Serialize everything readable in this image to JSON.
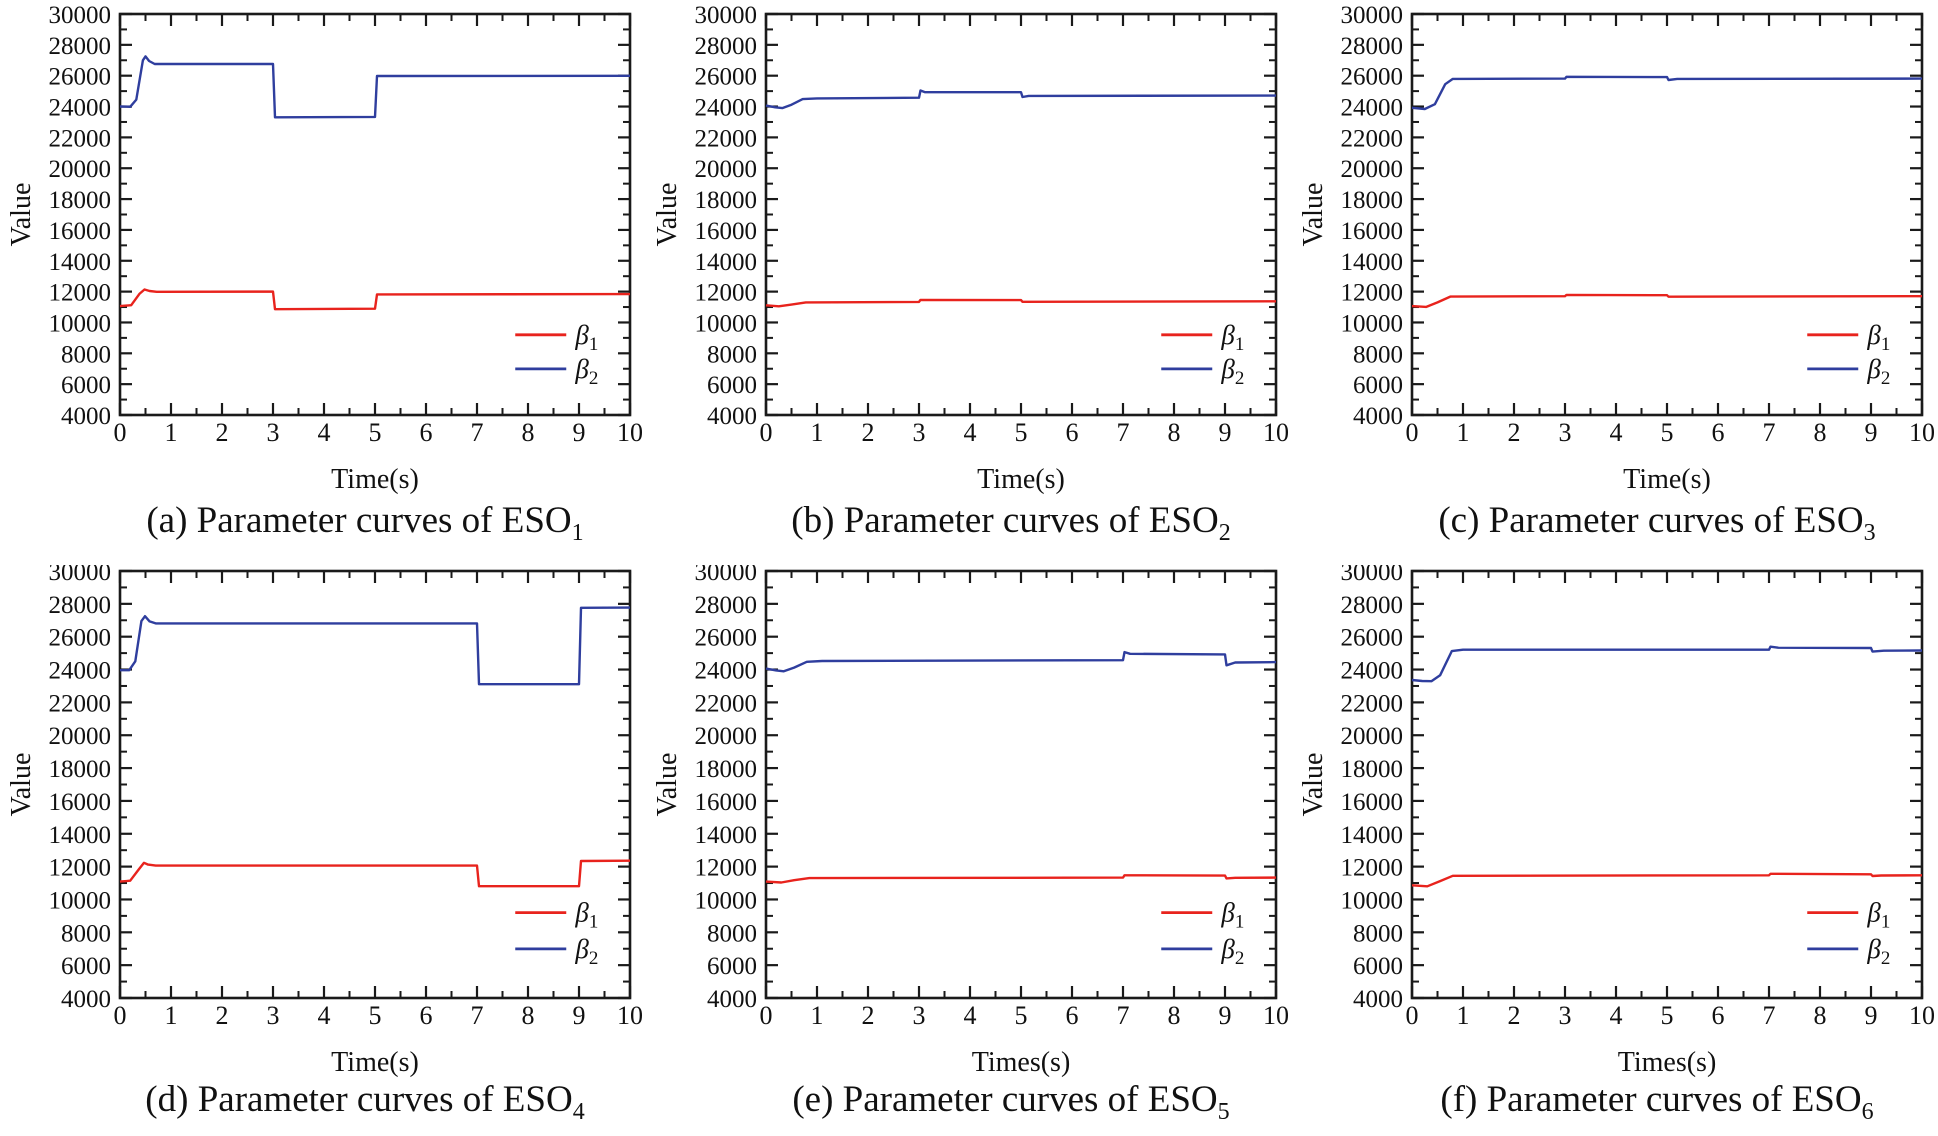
{
  "figure": {
    "ylabel": "Value",
    "legend": [
      {
        "symbol": "β",
        "sub": "1",
        "color": "#e8231d"
      },
      {
        "symbol": "β",
        "sub": "2",
        "color": "#2f3e9e"
      }
    ],
    "colors": {
      "beta1": "#e8231d",
      "beta2": "#2f3e9e",
      "axis": "#1a1a1a"
    }
  },
  "chart_data": [
    {
      "id": "a",
      "type": "line",
      "title": "(a) Parameter curves of ESO",
      "caption_prefix": "(a)",
      "caption_body": " Parameter curves of ESO",
      "caption_sub": "1",
      "xlabel": "Time(s)",
      "ylabel": "Value",
      "xlim": [
        0,
        10
      ],
      "ylim": [
        4000,
        30000
      ],
      "xticks": [
        0,
        1,
        2,
        3,
        4,
        5,
        6,
        7,
        8,
        9,
        10
      ],
      "yticks": [
        4000,
        6000,
        8000,
        10000,
        12000,
        14000,
        16000,
        18000,
        20000,
        22000,
        24000,
        26000,
        28000,
        30000
      ],
      "legend_entries": [
        "β_1",
        "β_2"
      ],
      "series": [
        {
          "name": "beta1",
          "color": "#e8231d",
          "points": [
            [
              0,
              11060
            ],
            [
              0.22,
              11120
            ],
            [
              0.38,
              11850
            ],
            [
              0.48,
              12140
            ],
            [
              0.58,
              12040
            ],
            [
              0.72,
              11990
            ],
            [
              3,
              12000
            ],
            [
              3.04,
              10860
            ],
            [
              5,
              10890
            ],
            [
              5.04,
              11820
            ],
            [
              10,
              11840
            ]
          ]
        },
        {
          "name": "beta2",
          "color": "#2f3e9e",
          "points": [
            [
              0,
              24000
            ],
            [
              0.2,
              23980
            ],
            [
              0.32,
              24450
            ],
            [
              0.45,
              27000
            ],
            [
              0.5,
              27250
            ],
            [
              0.57,
              26950
            ],
            [
              0.68,
              26760
            ],
            [
              3,
              26760
            ],
            [
              3.04,
              23300
            ],
            [
              5,
              23330
            ],
            [
              5.04,
              25980
            ],
            [
              10,
              25990
            ]
          ]
        }
      ]
    },
    {
      "id": "b",
      "type": "line",
      "title": "(b) Parameter curves of ESO",
      "caption_prefix": "(b)",
      "caption_body": " Parameter curves of ESO",
      "caption_sub": "2",
      "xlabel": "Time(s)",
      "ylabel": "Value",
      "xlim": [
        0,
        10
      ],
      "ylim": [
        4000,
        30000
      ],
      "xticks": [
        0,
        1,
        2,
        3,
        4,
        5,
        6,
        7,
        8,
        9,
        10
      ],
      "yticks": [
        4000,
        6000,
        8000,
        10000,
        12000,
        14000,
        16000,
        18000,
        20000,
        22000,
        24000,
        26000,
        28000,
        30000
      ],
      "legend_entries": [
        "β_1",
        "β_2"
      ],
      "series": [
        {
          "name": "beta1",
          "color": "#e8231d",
          "points": [
            [
              0,
              11110
            ],
            [
              0.25,
              11050
            ],
            [
              0.5,
              11160
            ],
            [
              0.78,
              11300
            ],
            [
              3,
              11330
            ],
            [
              3.03,
              11460
            ],
            [
              5,
              11450
            ],
            [
              5.03,
              11340
            ],
            [
              10,
              11370
            ]
          ]
        },
        {
          "name": "beta2",
          "color": "#2f3e9e",
          "points": [
            [
              0,
              24060
            ],
            [
              0.18,
              23950
            ],
            [
              0.32,
              23900
            ],
            [
              0.5,
              24120
            ],
            [
              0.72,
              24480
            ],
            [
              1,
              24530
            ],
            [
              3,
              24570
            ],
            [
              3.03,
              25040
            ],
            [
              3.12,
              24930
            ],
            [
              5,
              24930
            ],
            [
              5.03,
              24620
            ],
            [
              5.15,
              24690
            ],
            [
              10,
              24710
            ]
          ]
        }
      ]
    },
    {
      "id": "c",
      "type": "line",
      "title": "(c) Parameter curves of ESO",
      "caption_prefix": "(c)",
      "caption_body": " Parameter curves of ESO",
      "caption_sub": "3",
      "xlabel": "Time(s)",
      "ylabel": "Value",
      "xlim": [
        0,
        10
      ],
      "ylim": [
        4000,
        30000
      ],
      "xticks": [
        0,
        1,
        2,
        3,
        4,
        5,
        6,
        7,
        8,
        9,
        10
      ],
      "yticks": [
        4000,
        6000,
        8000,
        10000,
        12000,
        14000,
        16000,
        18000,
        20000,
        22000,
        24000,
        26000,
        28000,
        30000
      ],
      "legend_entries": [
        "β_1",
        "β_2"
      ],
      "series": [
        {
          "name": "beta1",
          "color": "#e8231d",
          "points": [
            [
              0,
              11060
            ],
            [
              0.28,
              11010
            ],
            [
              0.5,
              11300
            ],
            [
              0.75,
              11680
            ],
            [
              3,
              11700
            ],
            [
              3.03,
              11790
            ],
            [
              5,
              11770
            ],
            [
              5.03,
              11670
            ],
            [
              10,
              11700
            ]
          ]
        },
        {
          "name": "beta2",
          "color": "#2f3e9e",
          "points": [
            [
              0,
              23920
            ],
            [
              0.25,
              23840
            ],
            [
              0.45,
              24150
            ],
            [
              0.65,
              25450
            ],
            [
              0.8,
              25790
            ],
            [
              3,
              25810
            ],
            [
              3.03,
              25930
            ],
            [
              5,
              25910
            ],
            [
              5.03,
              25720
            ],
            [
              5.2,
              25790
            ],
            [
              10,
              25810
            ]
          ]
        }
      ]
    },
    {
      "id": "d",
      "type": "line",
      "title": "(d) Parameter curves of ESO",
      "caption_prefix": "(d)",
      "caption_body": " Parameter curves of ESO",
      "caption_sub": "4",
      "xlabel": "Time(s)",
      "ylabel": "Value",
      "xlim": [
        0,
        10
      ],
      "ylim": [
        4000,
        30000
      ],
      "xticks": [
        0,
        1,
        2,
        3,
        4,
        5,
        6,
        7,
        8,
        9,
        10
      ],
      "yticks": [
        4000,
        6000,
        8000,
        10000,
        12000,
        14000,
        16000,
        18000,
        20000,
        22000,
        24000,
        26000,
        28000,
        30000
      ],
      "legend_entries": [
        "β_1",
        "β_2"
      ],
      "series": [
        {
          "name": "beta1",
          "color": "#e8231d",
          "points": [
            [
              0,
              11090
            ],
            [
              0.2,
              11140
            ],
            [
              0.36,
              11800
            ],
            [
              0.47,
              12230
            ],
            [
              0.55,
              12120
            ],
            [
              0.7,
              12060
            ],
            [
              7,
              12060
            ],
            [
              7.04,
              10810
            ],
            [
              9,
              10810
            ],
            [
              9.04,
              12340
            ],
            [
              10,
              12360
            ]
          ]
        },
        {
          "name": "beta2",
          "color": "#2f3e9e",
          "points": [
            [
              0,
              23960
            ],
            [
              0.18,
              23960
            ],
            [
              0.3,
              24500
            ],
            [
              0.42,
              26950
            ],
            [
              0.49,
              27250
            ],
            [
              0.58,
              26930
            ],
            [
              0.7,
              26810
            ],
            [
              7,
              26810
            ],
            [
              7.04,
              23110
            ],
            [
              9,
              23110
            ],
            [
              9.04,
              27760
            ],
            [
              10,
              27770
            ]
          ]
        }
      ]
    },
    {
      "id": "e",
      "type": "line",
      "title": "(e) Parameter curves of ESO",
      "caption_prefix": "(e)",
      "caption_body": " Parameter curves of ESO",
      "caption_sub": "5",
      "xlabel": "Times(s)",
      "ylabel": "Value",
      "xlim": [
        0,
        10
      ],
      "ylim": [
        4000,
        30000
      ],
      "xticks": [
        0,
        1,
        2,
        3,
        4,
        5,
        6,
        7,
        8,
        9,
        10
      ],
      "yticks": [
        4000,
        6000,
        8000,
        10000,
        12000,
        14000,
        16000,
        18000,
        20000,
        22000,
        24000,
        26000,
        28000,
        30000
      ],
      "legend_entries": [
        "β_1",
        "β_2"
      ],
      "series": [
        {
          "name": "beta1",
          "color": "#e8231d",
          "points": [
            [
              0,
              11090
            ],
            [
              0.3,
              11030
            ],
            [
              0.55,
              11170
            ],
            [
              0.85,
              11300
            ],
            [
              7,
              11330
            ],
            [
              7.03,
              11470
            ],
            [
              9,
              11450
            ],
            [
              9.03,
              11280
            ],
            [
              9.2,
              11320
            ],
            [
              10,
              11330
            ]
          ]
        },
        {
          "name": "beta2",
          "color": "#2f3e9e",
          "points": [
            [
              0,
              24060
            ],
            [
              0.2,
              23950
            ],
            [
              0.35,
              23890
            ],
            [
              0.55,
              24120
            ],
            [
              0.8,
              24470
            ],
            [
              1.1,
              24520
            ],
            [
              7,
              24570
            ],
            [
              7.03,
              25060
            ],
            [
              7.14,
              24960
            ],
            [
              9,
              24920
            ],
            [
              9.03,
              24260
            ],
            [
              9.2,
              24430
            ],
            [
              10,
              24450
            ]
          ]
        }
      ]
    },
    {
      "id": "f",
      "type": "line",
      "title": "(f) Parameter curves of ESO",
      "caption_prefix": "(f)",
      "caption_body": " Parameter curves of ESO",
      "caption_sub": "6",
      "xlabel": "Times(s)",
      "ylabel": "Value",
      "xlim": [
        0,
        10
      ],
      "ylim": [
        4000,
        30000
      ],
      "xticks": [
        0,
        1,
        2,
        3,
        4,
        5,
        6,
        7,
        8,
        9,
        10
      ],
      "yticks": [
        4000,
        6000,
        8000,
        10000,
        12000,
        14000,
        16000,
        18000,
        20000,
        22000,
        24000,
        26000,
        28000,
        30000
      ],
      "legend_entries": [
        "β_1",
        "β_2"
      ],
      "series": [
        {
          "name": "beta1",
          "color": "#e8231d",
          "points": [
            [
              0,
              10860
            ],
            [
              0.3,
              10800
            ],
            [
              0.55,
              11120
            ],
            [
              0.8,
              11440
            ],
            [
              7,
              11470
            ],
            [
              7.03,
              11560
            ],
            [
              9,
              11530
            ],
            [
              9.03,
              11430
            ],
            [
              9.2,
              11460
            ],
            [
              10,
              11470
            ]
          ]
        },
        {
          "name": "beta2",
          "color": "#2f3e9e",
          "points": [
            [
              0,
              23360
            ],
            [
              0.2,
              23300
            ],
            [
              0.38,
              23290
            ],
            [
              0.55,
              23650
            ],
            [
              0.78,
              25120
            ],
            [
              1,
              25210
            ],
            [
              7,
              25210
            ],
            [
              7.03,
              25390
            ],
            [
              7.18,
              25330
            ],
            [
              9,
              25310
            ],
            [
              9.03,
              25090
            ],
            [
              9.25,
              25150
            ],
            [
              10,
              25160
            ]
          ]
        }
      ]
    }
  ]
}
